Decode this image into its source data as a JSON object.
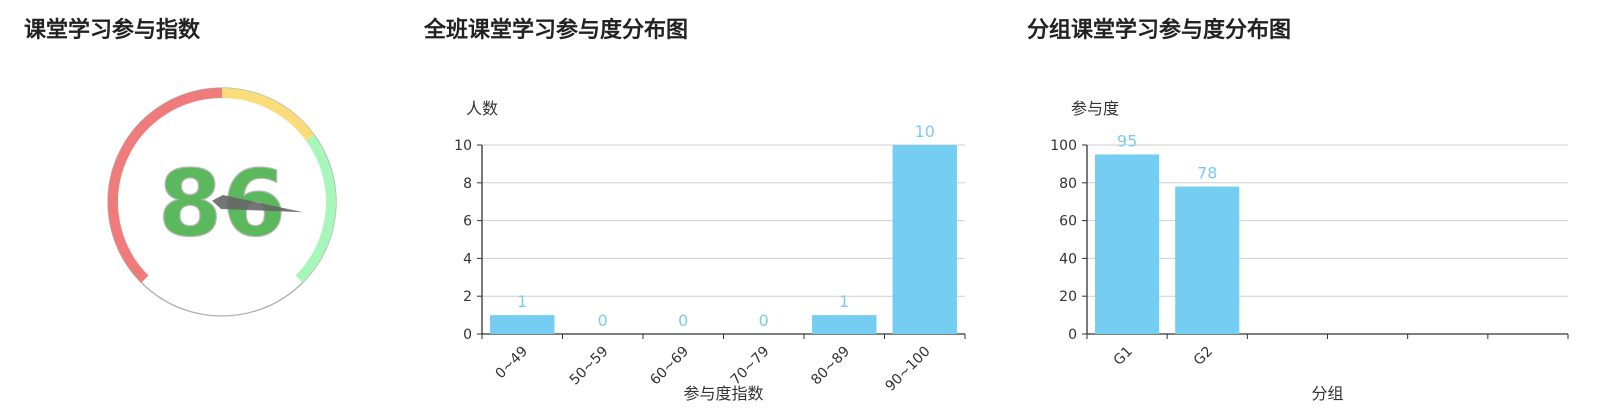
{
  "titles": {
    "gauge": "课堂学习参与指数",
    "class_dist": "全班课堂学习参与度分布图",
    "group_dist": "分组课堂学习参与度分布图"
  },
  "chart_data": [
    {
      "type": "gauge",
      "title": "课堂学习参与指数",
      "value": 86,
      "min": 0,
      "max": 100,
      "bands": [
        {
          "from": 0,
          "to": 50,
          "color": "#f07b7b"
        },
        {
          "from": 50,
          "to": 70,
          "color": "#fadd7a"
        },
        {
          "from": 70,
          "to": 100,
          "color": "#a6f7b9"
        }
      ],
      "value_color": "#5cb85c"
    },
    {
      "type": "bar",
      "title": "全班课堂学习参与度分布图",
      "categories": [
        "0~49",
        "50~59",
        "60~69",
        "70~79",
        "80~89",
        "90~100"
      ],
      "values": [
        1,
        0,
        0,
        0,
        1,
        10
      ],
      "xlabel": "参与度指数",
      "ylabel": "人数",
      "ylim": [
        0,
        10
      ],
      "yticks": [
        0,
        2,
        4,
        6,
        8,
        10
      ],
      "grid": true,
      "bar_color": "#75cdf1"
    },
    {
      "type": "bar",
      "title": "分组课堂学习参与度分布图",
      "categories": [
        "G1",
        "G2",
        "",
        "",
        "",
        ""
      ],
      "values": [
        95,
        78,
        null,
        null,
        null,
        null
      ],
      "xlabel": "分组",
      "ylabel": "参与度",
      "ylim": [
        0,
        100
      ],
      "yticks": [
        0,
        20,
        40,
        60,
        80,
        100
      ],
      "grid": true,
      "bar_color": "#75cdf1"
    }
  ]
}
